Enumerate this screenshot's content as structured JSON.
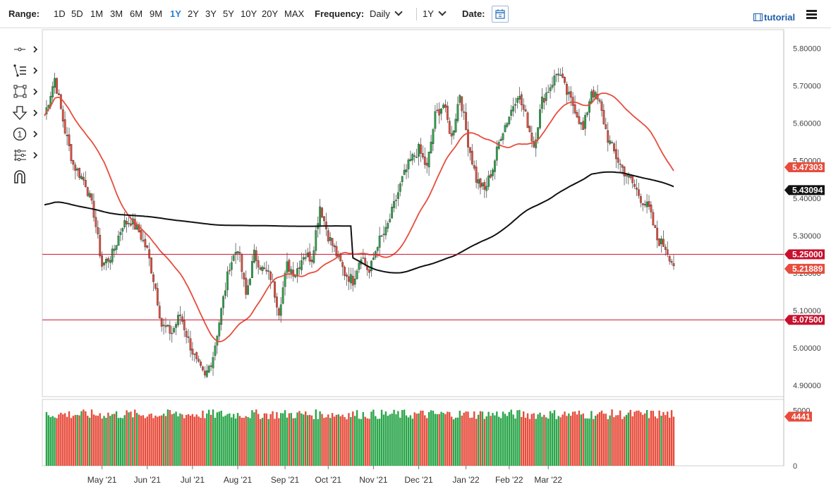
{
  "toolbar": {
    "range_label": "Range:",
    "ranges": [
      "1D",
      "5D",
      "1M",
      "3M",
      "6M",
      "9M",
      "1Y",
      "2Y",
      "3Y",
      "5Y",
      "10Y",
      "20Y",
      "MAX"
    ],
    "active_range": "1Y",
    "frequency_label": "Frequency:",
    "frequency_value": "Daily",
    "period_value": "1Y",
    "date_label": "Date:",
    "tutorial_label": "tutorial"
  },
  "tools": [
    "crosshair-icon",
    "trendline-list-icon",
    "rectangle-icon",
    "arrow-down-icon",
    "number-one-icon",
    "fibonacci-icon",
    "magnet-icon"
  ],
  "colors": {
    "up": "#2aa64a",
    "down": "#e74c3c",
    "ma_fast": "#e74c3c",
    "ma_slow": "#111111",
    "level": "#c8102e"
  },
  "chart_data": {
    "type": "candlestick",
    "ylim": [
      4.87,
      5.85
    ],
    "y_ticks": [
      "5.80000",
      "5.70000",
      "5.60000",
      "5.50000",
      "5.40000",
      "5.30000",
      "5.20000",
      "5.10000",
      "5.00000",
      "4.90000"
    ],
    "x_ticks": [
      "May '21",
      "Jun '21",
      "Jul '21",
      "Aug '21",
      "Sep '21",
      "Oct '21",
      "Nov '21",
      "Dec '21",
      "Jan '22",
      "Feb '22",
      "Mar '22"
    ],
    "anchors": [
      [
        0,
        5.62
      ],
      [
        5,
        5.72
      ],
      [
        10,
        5.58
      ],
      [
        14,
        5.49
      ],
      [
        20,
        5.44
      ],
      [
        24,
        5.36
      ],
      [
        28,
        5.22
      ],
      [
        33,
        5.25
      ],
      [
        38,
        5.33
      ],
      [
        42,
        5.34
      ],
      [
        46,
        5.31
      ],
      [
        50,
        5.26
      ],
      [
        54,
        5.16
      ],
      [
        57,
        5.06
      ],
      [
        62,
        5.04
      ],
      [
        66,
        5.09
      ],
      [
        70,
        5.02
      ],
      [
        74,
        4.96
      ],
      [
        78,
        4.92
      ],
      [
        82,
        4.98
      ],
      [
        86,
        5.1
      ],
      [
        90,
        5.22
      ],
      [
        94,
        5.27
      ],
      [
        98,
        5.14
      ],
      [
        102,
        5.25
      ],
      [
        106,
        5.21
      ],
      [
        110,
        5.19
      ],
      [
        114,
        5.1
      ],
      [
        118,
        5.22
      ],
      [
        122,
        5.2
      ],
      [
        126,
        5.25
      ],
      [
        130,
        5.24
      ],
      [
        134,
        5.38
      ],
      [
        138,
        5.3
      ],
      [
        142,
        5.25
      ],
      [
        146,
        5.2
      ],
      [
        150,
        5.18
      ],
      [
        154,
        5.25
      ],
      [
        158,
        5.2
      ],
      [
        162,
        5.28
      ],
      [
        166,
        5.31
      ],
      [
        170,
        5.38
      ],
      [
        174,
        5.45
      ],
      [
        178,
        5.5
      ],
      [
        182,
        5.53
      ],
      [
        186,
        5.48
      ],
      [
        190,
        5.62
      ],
      [
        194,
        5.65
      ],
      [
        198,
        5.56
      ],
      [
        202,
        5.68
      ],
      [
        206,
        5.55
      ],
      [
        210,
        5.45
      ],
      [
        214,
        5.42
      ],
      [
        218,
        5.48
      ],
      [
        222,
        5.57
      ],
      [
        226,
        5.62
      ],
      [
        230,
        5.68
      ],
      [
        234,
        5.62
      ],
      [
        238,
        5.54
      ],
      [
        242,
        5.66
      ],
      [
        246,
        5.7
      ],
      [
        250,
        5.74
      ],
      [
        254,
        5.68
      ],
      [
        258,
        5.64
      ],
      [
        262,
        5.58
      ],
      [
        266,
        5.69
      ],
      [
        270,
        5.65
      ],
      [
        274,
        5.56
      ],
      [
        278,
        5.51
      ],
      [
        282,
        5.47
      ],
      [
        286,
        5.44
      ],
      [
        290,
        5.4
      ],
      [
        294,
        5.37
      ],
      [
        298,
        5.29
      ],
      [
        302,
        5.27
      ],
      [
        306,
        5.22
      ]
    ],
    "ma_fast": {
      "last": 5.47303,
      "label": "5.47303"
    },
    "ma_slow": {
      "last": 5.43094,
      "label": "5.43094"
    },
    "levels": [
      {
        "value": 5.25,
        "label": "5.25000"
      },
      {
        "value": 5.075,
        "label": "5.07500"
      }
    ],
    "last_price": {
      "value": 5.21889,
      "label": "5.21889"
    },
    "volume": {
      "ylim": [
        0,
        6000
      ],
      "y_ticks": [
        "5000",
        "0"
      ],
      "last": 4441,
      "last_label": "4441"
    }
  }
}
